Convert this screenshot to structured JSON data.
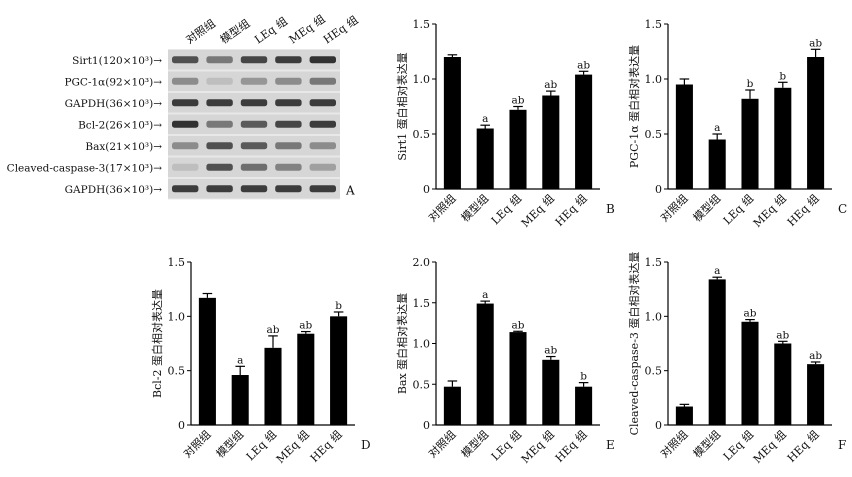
{
  "blot": {
    "lane_labels": [
      "对照组",
      "模型组",
      "LEq 组",
      "MEq 组",
      "HEq 组"
    ],
    "rows": [
      {
        "label": "Sirt1(120×10³)→",
        "intensity": [
          0.75,
          0.55,
          0.8,
          0.85,
          0.9
        ]
      },
      {
        "label": "PGC-1α(92×10³)→",
        "intensity": [
          0.45,
          0.2,
          0.4,
          0.45,
          0.55
        ]
      },
      {
        "label": "GAPDH(36×10³)→",
        "intensity": [
          0.85,
          0.85,
          0.85,
          0.85,
          0.85
        ]
      },
      {
        "label": "Bcl-2(26×10³)→",
        "intensity": [
          0.9,
          0.55,
          0.7,
          0.8,
          0.85
        ]
      },
      {
        "label": "Bax(21×10³)→",
        "intensity": [
          0.45,
          0.75,
          0.7,
          0.55,
          0.45
        ]
      },
      {
        "label": "Cleaved-caspase-3(17×10³)→",
        "intensity": [
          0.2,
          0.75,
          0.6,
          0.5,
          0.35
        ]
      },
      {
        "label": "GAPDH(36×10³)→",
        "intensity": [
          0.85,
          0.85,
          0.85,
          0.85,
          0.85
        ]
      }
    ],
    "panel_letter": "A"
  },
  "chart_data": [
    {
      "type": "bar",
      "panel": "B",
      "categories": [
        "对照组",
        "模型组",
        "LEq 组",
        "MEq 组",
        "HEq 组"
      ],
      "values": [
        1.2,
        0.55,
        0.72,
        0.85,
        1.04
      ],
      "errors": [
        0.02,
        0.03,
        0.03,
        0.04,
        0.03
      ],
      "labels": [
        "",
        "a",
        "ab",
        "ab",
        "ab"
      ],
      "ylabel": "Sirt1 蛋白相对表达量",
      "ylim": [
        0,
        1.5
      ],
      "yticks": [
        "0",
        "0.5",
        "1.0",
        "1.5"
      ],
      "tick_values": [
        0,
        0.5,
        1.0,
        1.5
      ],
      "bar_color": "#000000"
    },
    {
      "type": "bar",
      "panel": "C",
      "categories": [
        "对照组",
        "模型组",
        "LEq 组",
        "MEq 组",
        "HEq 组"
      ],
      "values": [
        0.95,
        0.45,
        0.82,
        0.92,
        1.2
      ],
      "errors": [
        0.05,
        0.05,
        0.08,
        0.05,
        0.07
      ],
      "labels": [
        "",
        "a",
        "b",
        "b",
        "ab"
      ],
      "ylabel": "PGC-1α 蛋白相对表达量",
      "ylim": [
        0,
        1.5
      ],
      "yticks": [
        "0",
        "0.5",
        "1.0",
        "1.5"
      ],
      "tick_values": [
        0,
        0.5,
        1.0,
        1.5
      ],
      "bar_color": "#000000"
    },
    {
      "type": "bar",
      "panel": "D",
      "categories": [
        "对照组",
        "模型组",
        "LEq 组",
        "MEq 组",
        "HEq 组"
      ],
      "values": [
        1.17,
        0.46,
        0.71,
        0.84,
        1.0
      ],
      "errors": [
        0.04,
        0.08,
        0.11,
        0.02,
        0.04
      ],
      "labels": [
        "",
        "a",
        "ab",
        "ab",
        "b"
      ],
      "ylabel": "Bcl-2 蛋白相对表达量",
      "ylim": [
        0,
        1.5
      ],
      "yticks": [
        "0",
        "0.5",
        "1.0",
        "1.5"
      ],
      "tick_values": [
        0,
        0.5,
        1.0,
        1.5
      ],
      "bar_color": "#000000"
    },
    {
      "type": "bar",
      "panel": "E",
      "categories": [
        "对照组",
        "模型组",
        "LEq 组",
        "MEq 组",
        "HEq 组"
      ],
      "values": [
        0.47,
        1.49,
        1.14,
        0.8,
        0.47
      ],
      "errors": [
        0.07,
        0.03,
        0.01,
        0.04,
        0.05
      ],
      "labels": [
        "",
        "a",
        "ab",
        "ab",
        "b"
      ],
      "ylabel": "Bax 蛋白相对表达量",
      "ylim": [
        0,
        2.0
      ],
      "yticks": [
        "0",
        "0.5",
        "1.0",
        "1.5",
        "2.0"
      ],
      "tick_values": [
        0,
        0.5,
        1.0,
        1.5,
        2.0
      ],
      "bar_color": "#000000"
    },
    {
      "type": "bar",
      "panel": "F",
      "categories": [
        "对照组",
        "模型组",
        "LEq 组",
        "MEq 组",
        "HEq 组"
      ],
      "values": [
        0.17,
        1.34,
        0.95,
        0.75,
        0.56
      ],
      "errors": [
        0.02,
        0.02,
        0.02,
        0.02,
        0.02
      ],
      "labels": [
        "",
        "a",
        "ab",
        "ab",
        "ab"
      ],
      "ylabel": "Cleaved-caspase-3 蛋白相对表达量",
      "ylim": [
        0,
        1.5
      ],
      "yticks": [
        "0",
        "0.5",
        "1.0",
        "1.5"
      ],
      "tick_values": [
        0,
        0.5,
        1.0,
        1.5
      ],
      "bar_color": "#000000"
    }
  ]
}
